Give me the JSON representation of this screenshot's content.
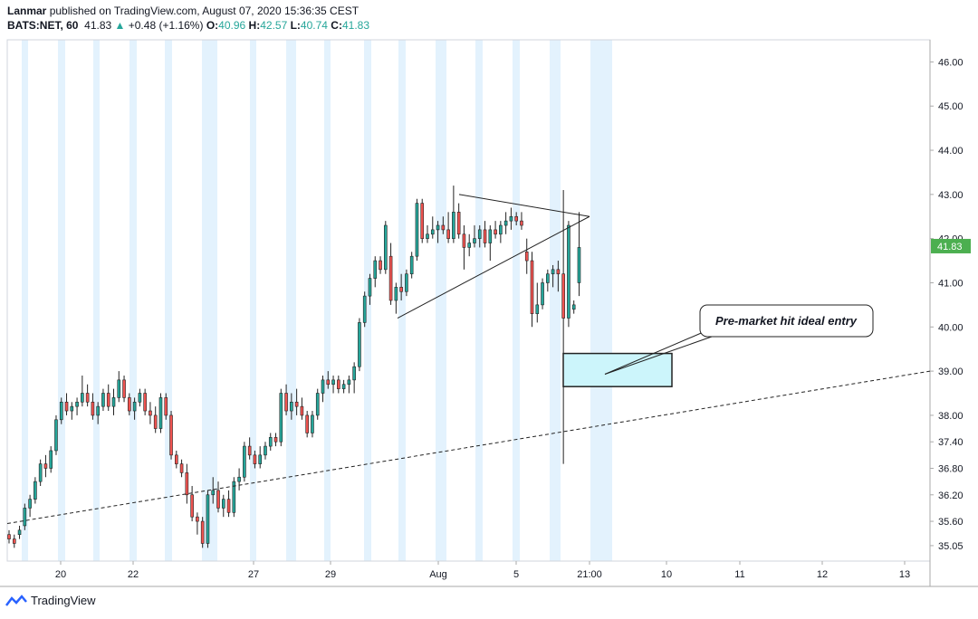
{
  "header": {
    "author": "Lanmar",
    "published_text": " published on TradingView.com, August 07, 2020 15:36:35 CEST",
    "symbol": "BATS:NET, 60",
    "last": "41.83",
    "change": "+0.48 (+1.16%)",
    "open_label": "O:",
    "open": "40.96",
    "high_label": "H:",
    "high": "42.57",
    "low_label": "L:",
    "low": "40.74",
    "close_label": "C:",
    "close": "41.83"
  },
  "footer": {
    "brand": "TradingView"
  },
  "colors": {
    "up": "#26a69a",
    "down": "#ef5350",
    "session": "#e3f2fd",
    "callout_box": "#ccf5fb",
    "price_tag": "#4caf50"
  },
  "chart_data": {
    "type": "candlestick",
    "ylim": [
      34.7,
      46.5
    ],
    "y_ticks": [
      "46.00",
      "45.00",
      "44.00",
      "43.00",
      "42.00",
      "41.00",
      "40.00",
      "39.00",
      "38.00",
      "37.40",
      "36.80",
      "36.20",
      "35.60",
      "35.05"
    ],
    "x_ticks": [
      "20",
      "22",
      "27",
      "29",
      "Aug",
      "5",
      "21:00",
      "10",
      "11",
      "12",
      "13"
    ],
    "current_price_label": "41.83",
    "bars_visible": 164,
    "annotations": {
      "callout_text": "Pre-market hit ideal entry",
      "zone": [
        38.65,
        39.4
      ],
      "triangle": "symmetrical triangle from highs ~43 and rising lows ~40.2",
      "trendline": "dashed rising support line from ~35.5 to ~39.0"
    },
    "candles_ohlc": [
      [
        35.3,
        35.4,
        35.1,
        35.2
      ],
      [
        35.2,
        35.3,
        35.0,
        35.1
      ],
      [
        35.3,
        35.5,
        35.2,
        35.4
      ],
      [
        35.5,
        36.0,
        35.4,
        35.9
      ],
      [
        35.9,
        36.2,
        35.7,
        36.1
      ],
      [
        36.1,
        36.6,
        36.0,
        36.5
      ],
      [
        36.5,
        37.0,
        36.4,
        36.9
      ],
      [
        36.9,
        37.1,
        36.6,
        36.8
      ],
      [
        36.8,
        37.3,
        36.7,
        37.2
      ],
      [
        37.2,
        38.0,
        37.1,
        37.9
      ],
      [
        37.9,
        38.4,
        37.8,
        38.3
      ],
      [
        38.3,
        38.5,
        38.0,
        38.1
      ],
      [
        38.1,
        38.3,
        37.9,
        38.2
      ],
      [
        38.2,
        38.4,
        38.0,
        38.3
      ],
      [
        38.3,
        38.9,
        38.2,
        38.5
      ],
      [
        38.5,
        38.7,
        38.2,
        38.3
      ],
      [
        38.3,
        38.5,
        37.9,
        38.0
      ],
      [
        38.0,
        38.3,
        37.8,
        38.2
      ],
      [
        38.2,
        38.6,
        38.1,
        38.5
      ],
      [
        38.5,
        38.7,
        38.1,
        38.2
      ],
      [
        38.2,
        38.6,
        38.0,
        38.4
      ],
      [
        38.4,
        39.0,
        38.3,
        38.8
      ],
      [
        38.8,
        38.9,
        38.3,
        38.4
      ],
      [
        38.4,
        38.5,
        38.0,
        38.1
      ],
      [
        38.1,
        38.4,
        37.9,
        38.3
      ],
      [
        38.3,
        38.6,
        38.2,
        38.5
      ],
      [
        38.5,
        38.6,
        38.0,
        38.1
      ],
      [
        38.1,
        38.3,
        37.8,
        38.0
      ],
      [
        38.0,
        38.2,
        37.6,
        37.7
      ],
      [
        37.7,
        38.5,
        37.6,
        38.4
      ],
      [
        38.4,
        38.5,
        37.9,
        38.0
      ],
      [
        38.0,
        38.1,
        37.0,
        37.1
      ],
      [
        37.1,
        37.2,
        36.8,
        36.9
      ],
      [
        36.9,
        37.0,
        36.6,
        36.7
      ],
      [
        36.7,
        36.9,
        36.0,
        36.2
      ],
      [
        36.2,
        36.4,
        35.6,
        35.7
      ],
      [
        35.7,
        35.8,
        35.3,
        35.6
      ],
      [
        35.6,
        35.7,
        35.0,
        35.1
      ],
      [
        35.1,
        36.3,
        35.0,
        36.2
      ],
      [
        36.2,
        36.6,
        36.0,
        36.3
      ],
      [
        36.3,
        36.5,
        35.8,
        35.9
      ],
      [
        35.9,
        36.2,
        35.7,
        36.1
      ],
      [
        36.1,
        36.3,
        35.7,
        35.8
      ],
      [
        35.8,
        36.6,
        35.7,
        36.5
      ],
      [
        36.5,
        36.8,
        36.3,
        36.6
      ],
      [
        36.6,
        37.4,
        36.5,
        37.3
      ],
      [
        37.3,
        37.5,
        37.0,
        37.1
      ],
      [
        37.1,
        37.2,
        36.8,
        36.9
      ],
      [
        36.9,
        37.3,
        36.8,
        37.1
      ],
      [
        37.1,
        37.4,
        37.0,
        37.3
      ],
      [
        37.3,
        37.6,
        37.2,
        37.5
      ],
      [
        37.5,
        37.6,
        37.3,
        37.4
      ],
      [
        37.4,
        38.6,
        37.3,
        38.5
      ],
      [
        38.5,
        38.7,
        38.0,
        38.1
      ],
      [
        38.1,
        38.5,
        37.9,
        38.3
      ],
      [
        38.3,
        38.6,
        38.0,
        38.2
      ],
      [
        38.2,
        38.4,
        37.9,
        38.0
      ],
      [
        38.0,
        38.1,
        37.5,
        37.6
      ],
      [
        37.6,
        38.1,
        37.5,
        38.0
      ],
      [
        38.0,
        38.6,
        37.9,
        38.5
      ],
      [
        38.5,
        38.9,
        38.3,
        38.8
      ],
      [
        38.8,
        39.0,
        38.6,
        38.7
      ],
      [
        38.7,
        38.9,
        38.5,
        38.8
      ],
      [
        38.8,
        38.9,
        38.5,
        38.6
      ],
      [
        38.6,
        38.8,
        38.5,
        38.7
      ],
      [
        38.7,
        38.9,
        38.5,
        38.8
      ],
      [
        38.8,
        39.2,
        38.5,
        39.1
      ],
      [
        39.1,
        40.2,
        39.0,
        40.1
      ],
      [
        40.1,
        40.8,
        40.0,
        40.7
      ],
      [
        40.7,
        41.2,
        40.5,
        41.1
      ],
      [
        41.1,
        41.6,
        40.9,
        41.5
      ],
      [
        41.5,
        41.6,
        41.2,
        41.3
      ],
      [
        41.3,
        42.4,
        41.2,
        42.3
      ],
      [
        41.6,
        41.9,
        40.5,
        40.6
      ],
      [
        40.6,
        41.0,
        40.3,
        40.9
      ],
      [
        40.9,
        41.2,
        40.6,
        40.8
      ],
      [
        40.8,
        41.3,
        40.7,
        41.2
      ],
      [
        41.2,
        41.7,
        41.1,
        41.6
      ],
      [
        41.6,
        42.9,
        41.5,
        42.8
      ],
      [
        42.8,
        42.9,
        41.9,
        42.0
      ],
      [
        42.0,
        42.3,
        41.9,
        42.1
      ],
      [
        42.1,
        42.5,
        42.0,
        42.2
      ],
      [
        42.2,
        42.4,
        41.9,
        42.3
      ],
      [
        42.3,
        42.5,
        42.1,
        42.2
      ],
      [
        42.2,
        42.6,
        41.9,
        42.0
      ],
      [
        42.0,
        43.2,
        41.9,
        42.6
      ],
      [
        42.6,
        42.8,
        42.0,
        42.1
      ],
      [
        42.1,
        42.3,
        41.3,
        41.8
      ],
      [
        41.8,
        42.1,
        41.6,
        41.9
      ],
      [
        41.9,
        42.3,
        41.8,
        42.0
      ],
      [
        42.0,
        42.3,
        41.8,
        42.2
      ],
      [
        42.2,
        42.4,
        41.8,
        41.9
      ],
      [
        41.9,
        42.3,
        41.5,
        42.2
      ],
      [
        42.2,
        42.4,
        42.0,
        42.1
      ],
      [
        42.1,
        42.4,
        41.9,
        42.3
      ],
      [
        42.3,
        42.6,
        42.1,
        42.4
      ],
      [
        42.4,
        42.7,
        42.2,
        42.5
      ],
      [
        42.5,
        42.6,
        42.3,
        42.4
      ],
      [
        42.4,
        42.6,
        42.2,
        42.3
      ],
      [
        41.7,
        42.0,
        41.2,
        41.5
      ],
      [
        41.5,
        41.7,
        40.0,
        40.3
      ],
      [
        40.3,
        41.0,
        40.1,
        40.5
      ],
      [
        40.5,
        41.1,
        40.4,
        41.0
      ],
      [
        41.0,
        41.3,
        40.8,
        41.2
      ],
      [
        41.2,
        41.4,
        40.9,
        41.3
      ],
      [
        41.3,
        41.5,
        40.8,
        41.2
      ],
      [
        41.2,
        43.1,
        36.9,
        40.2
      ],
      [
        40.2,
        42.4,
        40.0,
        42.3
      ],
      [
        40.4,
        40.6,
        40.3,
        40.5
      ],
      [
        41.0,
        42.6,
        40.7,
        41.8
      ]
    ]
  }
}
